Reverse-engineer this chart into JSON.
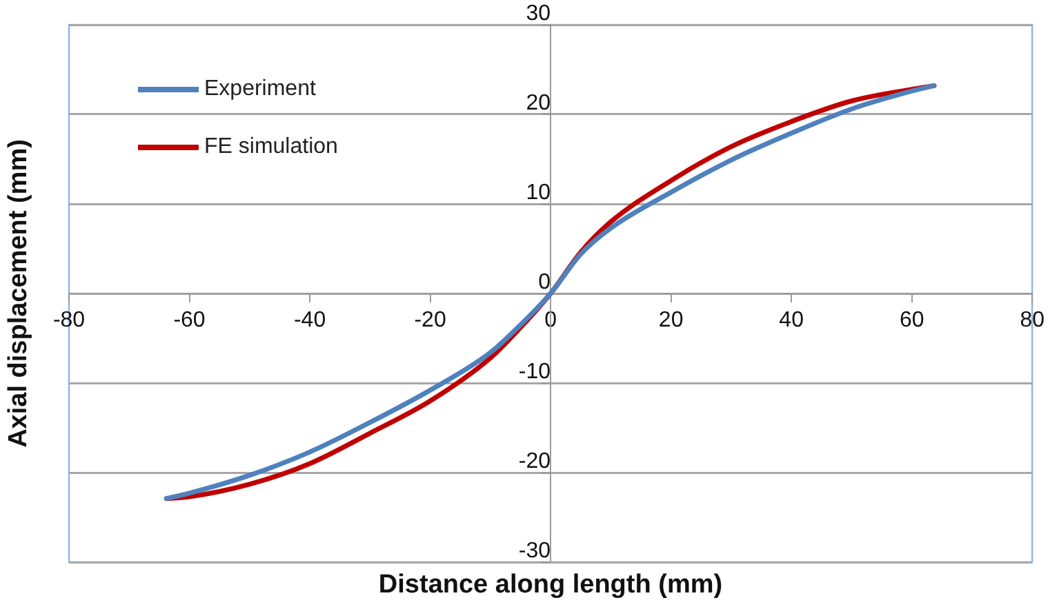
{
  "chart_data": {
    "type": "line",
    "xlabel": "Distance along length (mm)",
    "ylabel": "Axial displacement (mm)",
    "xlim": [
      -80,
      80
    ],
    "xticks": [
      -80,
      -60,
      -40,
      -20,
      0,
      20,
      40,
      60,
      80
    ],
    "ylim": [
      -30,
      30
    ],
    "yticks": [
      -30,
      -20,
      -10,
      0,
      10,
      20,
      30
    ],
    "grid": "y",
    "legend": "top left",
    "marker": "none",
    "line_style": "solid",
    "series": [
      {
        "name": "Experiment",
        "color": "#4f81bd",
        "x": [
          -63.8,
          -60,
          -50,
          -40,
          -30,
          -20,
          -10,
          -5,
          0,
          5,
          10,
          20,
          30,
          40,
          50,
          60,
          63.7
        ],
        "values": [
          -22.9,
          -22.3,
          -20.3,
          -17.7,
          -14.4,
          -10.8,
          -6.6,
          -3.5,
          0,
          4.4,
          7.3,
          11.3,
          14.9,
          17.9,
          20.6,
          22.6,
          23.2
        ]
      },
      {
        "name": "FE simulation",
        "color": "#c00000",
        "x": [
          -63.8,
          -60,
          -50,
          -40,
          -30,
          -20,
          -10,
          -5,
          0,
          5,
          10,
          20,
          30,
          40,
          50,
          60,
          63.7
        ],
        "values": [
          -22.9,
          -22.7,
          -21.3,
          -19.0,
          -15.6,
          -12.0,
          -7.2,
          -3.8,
          0,
          4.6,
          8.0,
          12.6,
          16.4,
          19.2,
          21.5,
          22.8,
          23.2
        ]
      }
    ]
  }
}
